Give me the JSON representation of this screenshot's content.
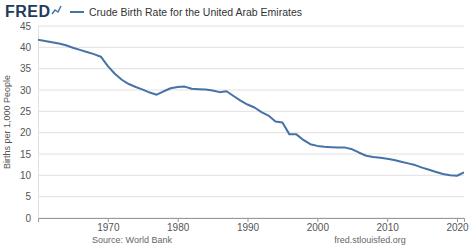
{
  "chart_data": {
    "type": "line",
    "brand": "FRED",
    "source": "Source: World Bank",
    "site": "fred.stlouisfed.org",
    "y_label": "Births per 1,000 People",
    "legend": "upper left",
    "grid": true,
    "x": [
      1960,
      1961,
      1962,
      1963,
      1964,
      1965,
      1966,
      1967,
      1968,
      1969,
      1970,
      1971,
      1972,
      1973,
      1974,
      1975,
      1976,
      1977,
      1978,
      1979,
      1980,
      1981,
      1982,
      1983,
      1984,
      1985,
      1986,
      1987,
      1988,
      1989,
      1990,
      1991,
      1992,
      1993,
      1994,
      1995,
      1996,
      1997,
      1998,
      1999,
      2000,
      2001,
      2002,
      2003,
      2004,
      2005,
      2006,
      2007,
      2008,
      2009,
      2010,
      2011,
      2012,
      2013,
      2014,
      2015,
      2016,
      2017,
      2018,
      2019,
      2020,
      2021
    ],
    "series": [
      {
        "name": "Crude Birth Rate for the United Arab Emirates",
        "color": "#4572a7",
        "values": [
          41.8,
          41.5,
          41.2,
          40.9,
          40.5,
          39.9,
          39.4,
          38.9,
          38.4,
          37.8,
          35.6,
          33.8,
          32.4,
          31.4,
          30.7,
          30.1,
          29.4,
          28.9,
          29.7,
          30.4,
          30.7,
          30.8,
          30.3,
          30.2,
          30.1,
          29.9,
          29.5,
          29.7,
          28.6,
          27.5,
          26.6,
          25.9,
          24.8,
          24.0,
          22.6,
          22.4,
          19.6,
          19.6,
          18.3,
          17.3,
          16.9,
          16.7,
          16.6,
          16.5,
          16.5,
          16.1,
          15.3,
          14.6,
          14.3,
          14.1,
          13.9,
          13.6,
          13.2,
          12.8,
          12.4,
          11.8,
          11.3,
          10.8,
          10.3,
          10.0,
          9.9,
          10.7
        ]
      }
    ],
    "xlim": [
      1960,
      2021
    ],
    "xticks": [
      1970,
      1980,
      1990,
      2000,
      2010,
      2020
    ],
    "ylim": [
      0,
      45
    ],
    "yticks": [
      0,
      5,
      10,
      15,
      20,
      25,
      30,
      35,
      40,
      45
    ]
  }
}
